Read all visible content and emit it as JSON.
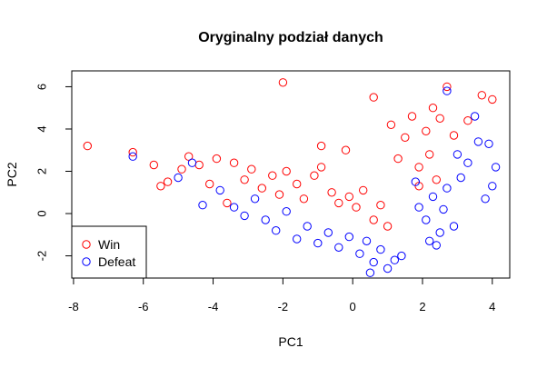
{
  "chart_data": {
    "type": "scatter",
    "title": "Oryginalny podział danych",
    "xlabel": "PC1",
    "ylabel": "PC2",
    "xlim": [
      -8.05,
      4.5
    ],
    "ylim": [
      -3.05,
      6.75
    ],
    "x_ticks": [
      -8,
      -6,
      -4,
      -2,
      0,
      2,
      4
    ],
    "y_ticks": [
      -2,
      0,
      2,
      4,
      6
    ],
    "grid": false,
    "legend_position": "bottom-left",
    "series": [
      {
        "name": "Win",
        "color": "#ff0000",
        "marker": "open-circle",
        "points": [
          [
            -7.6,
            3.2
          ],
          [
            -6.3,
            2.9
          ],
          [
            -5.7,
            2.3
          ],
          [
            -5.5,
            1.3
          ],
          [
            -5.3,
            1.5
          ],
          [
            -4.9,
            2.1
          ],
          [
            -4.7,
            2.7
          ],
          [
            -4.4,
            2.3
          ],
          [
            -4.1,
            1.4
          ],
          [
            -3.9,
            2.6
          ],
          [
            -3.6,
            0.5
          ],
          [
            -3.4,
            2.4
          ],
          [
            -3.1,
            1.6
          ],
          [
            -2.9,
            2.1
          ],
          [
            -2.6,
            1.2
          ],
          [
            -2.3,
            1.8
          ],
          [
            -2.1,
            0.9
          ],
          [
            -1.9,
            2.0
          ],
          [
            -1.6,
            1.4
          ],
          [
            -1.4,
            0.7
          ],
          [
            -1.1,
            1.8
          ],
          [
            -0.9,
            2.2
          ],
          [
            -0.6,
            1.0
          ],
          [
            -0.4,
            0.5
          ],
          [
            -0.1,
            0.8
          ],
          [
            0.1,
            0.3
          ],
          [
            0.3,
            1.1
          ],
          [
            0.6,
            -0.3
          ],
          [
            0.8,
            0.4
          ],
          [
            1.0,
            -0.6
          ],
          [
            -2.0,
            6.2
          ],
          [
            -0.9,
            3.2
          ],
          [
            -0.2,
            3.0
          ],
          [
            0.6,
            5.5
          ],
          [
            1.1,
            4.2
          ],
          [
            1.3,
            2.6
          ],
          [
            1.5,
            3.6
          ],
          [
            1.7,
            4.6
          ],
          [
            1.9,
            2.2
          ],
          [
            2.1,
            3.9
          ],
          [
            2.3,
            5.0
          ],
          [
            2.5,
            4.5
          ],
          [
            2.7,
            6.0
          ],
          [
            2.9,
            3.7
          ],
          [
            3.3,
            4.4
          ],
          [
            3.7,
            5.6
          ],
          [
            4.0,
            5.4
          ],
          [
            2.2,
            2.8
          ],
          [
            1.9,
            1.3
          ],
          [
            2.4,
            1.6
          ]
        ]
      },
      {
        "name": "Defeat",
        "color": "#0000ff",
        "marker": "open-circle",
        "points": [
          [
            -6.3,
            2.7
          ],
          [
            -5.0,
            1.7
          ],
          [
            -4.6,
            2.4
          ],
          [
            -4.3,
            0.4
          ],
          [
            -3.8,
            1.1
          ],
          [
            -3.4,
            0.3
          ],
          [
            -3.1,
            -0.1
          ],
          [
            -2.8,
            0.7
          ],
          [
            -2.5,
            -0.3
          ],
          [
            -2.2,
            -0.8
          ],
          [
            -1.9,
            0.1
          ],
          [
            -1.6,
            -1.2
          ],
          [
            -1.3,
            -0.6
          ],
          [
            -1.0,
            -1.4
          ],
          [
            -0.7,
            -0.9
          ],
          [
            -0.4,
            -1.6
          ],
          [
            -0.1,
            -1.1
          ],
          [
            0.2,
            -1.9
          ],
          [
            0.4,
            -1.3
          ],
          [
            0.6,
            -2.3
          ],
          [
            0.8,
            -1.7
          ],
          [
            1.0,
            -2.6
          ],
          [
            1.2,
            -2.2
          ],
          [
            1.4,
            -2.0
          ],
          [
            0.5,
            -2.8
          ],
          [
            1.9,
            0.3
          ],
          [
            2.1,
            -0.3
          ],
          [
            2.3,
            0.8
          ],
          [
            2.5,
            -0.9
          ],
          [
            2.7,
            1.2
          ],
          [
            2.9,
            -0.6
          ],
          [
            3.1,
            1.7
          ],
          [
            3.3,
            2.4
          ],
          [
            3.5,
            4.6
          ],
          [
            3.6,
            3.4
          ],
          [
            3.8,
            0.7
          ],
          [
            4.1,
            2.2
          ],
          [
            4.0,
            1.3
          ],
          [
            2.7,
            5.8
          ],
          [
            3.9,
            3.3
          ],
          [
            2.2,
            -1.3
          ],
          [
            2.6,
            0.2
          ],
          [
            3.0,
            2.8
          ],
          [
            1.8,
            1.5
          ],
          [
            2.4,
            -1.5
          ]
        ]
      }
    ]
  },
  "legend": {
    "items": [
      {
        "label": "Win",
        "color": "#ff0000"
      },
      {
        "label": "Defeat",
        "color": "#0000ff"
      }
    ]
  }
}
